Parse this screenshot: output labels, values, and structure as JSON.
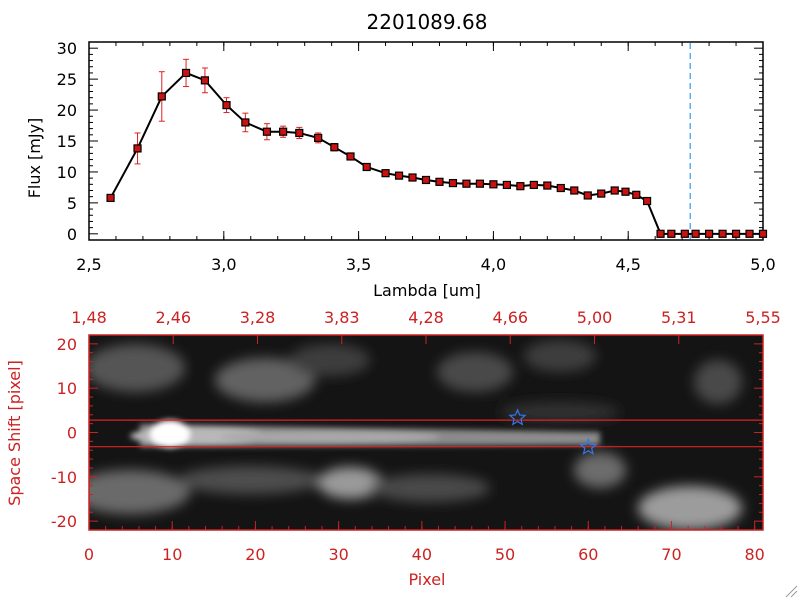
{
  "chart_data": [
    {
      "type": "line",
      "title": "2201089.68",
      "xlabel": "Lambda [um]",
      "ylabel": "Flux [mJy]",
      "xlim": [
        2.5,
        5.0
      ],
      "ylim": [
        -1,
        31
      ],
      "x_ticks": [
        "2.5",
        "3.0",
        "3.5",
        "4.0",
        "4.5",
        "5.0"
      ],
      "y_ticks": [
        "0",
        "5",
        "10",
        "15",
        "20",
        "25",
        "30"
      ],
      "colors": {
        "line": "#000000",
        "marker": "#cc1111",
        "error_bar": "#dd2222",
        "cutoff_line": "#3399ee"
      },
      "cutoff_x": 4.73,
      "series": [
        {
          "x": [
            2.58,
            2.68,
            2.77,
            2.86,
            2.93,
            3.01,
            3.08,
            3.16,
            3.22,
            3.28,
            3.35,
            3.41,
            3.47,
            3.53,
            3.6,
            3.65,
            3.7,
            3.75,
            3.8,
            3.85,
            3.9,
            3.95,
            4.0,
            4.05,
            4.1,
            4.15,
            4.2,
            4.25,
            4.3,
            4.35,
            4.4,
            4.45,
            4.49,
            4.53,
            4.57,
            4.62,
            4.66,
            4.71,
            4.75,
            4.8,
            4.85,
            4.9,
            4.95,
            5.0
          ],
          "y": [
            5.8,
            13.8,
            22.2,
            26.0,
            24.8,
            20.8,
            18.0,
            16.5,
            16.5,
            16.3,
            15.5,
            14.0,
            12.5,
            10.8,
            9.8,
            9.4,
            9.1,
            8.7,
            8.4,
            8.2,
            8.1,
            8.1,
            8.0,
            7.9,
            7.7,
            7.9,
            7.8,
            7.4,
            7.0,
            6.2,
            6.5,
            7.0,
            6.8,
            6.3,
            5.3,
            0.0,
            0.0,
            0.0,
            0.0,
            0.0,
            0.0,
            0.0,
            0.0,
            0.0
          ],
          "yerr": [
            0.4,
            2.5,
            4.0,
            2.2,
            2.0,
            1.2,
            1.5,
            1.3,
            0.9,
            0.9,
            0.8,
            0.6,
            0.5,
            0.5,
            0.4,
            0.4,
            0.4,
            0.3,
            0.3,
            0.3,
            0.3,
            0.3,
            0.3,
            0.3,
            0.3,
            0.3,
            0.3,
            0.3,
            0.3,
            0.3,
            0.3,
            0.3,
            0.3,
            0.3,
            0.4,
            0.0,
            0.0,
            0.0,
            0.0,
            0.0,
            0.0,
            0.0,
            0.0,
            0.0
          ]
        }
      ]
    },
    {
      "type": "heatmap",
      "xlabel": "Pixel",
      "ylabel": "Space Shift [pixel]",
      "xlim": [
        0,
        81
      ],
      "ylim": [
        -22,
        22
      ],
      "x_ticks": [
        "0",
        "10",
        "20",
        "30",
        "40",
        "50",
        "60",
        "70",
        "80"
      ],
      "y_ticks": [
        "-20",
        "-10",
        "0",
        "10",
        "20"
      ],
      "top_axis_ticks": [
        "1.48",
        "2.46",
        "3.28",
        "3.83",
        "4.28",
        "4.66",
        "5.00",
        "5.31",
        "5.55"
      ],
      "colormap": "grayscale",
      "colors": {
        "axis": "#cc2222",
        "extraction_lines": "#dd2222",
        "markers": "#3377ee"
      },
      "extraction_lines_y": [
        2.8,
        -3.2
      ],
      "star_markers": [
        {
          "x": 51.5,
          "y": 3.3
        },
        {
          "x": 60.0,
          "y": -3.3
        }
      ]
    }
  ]
}
